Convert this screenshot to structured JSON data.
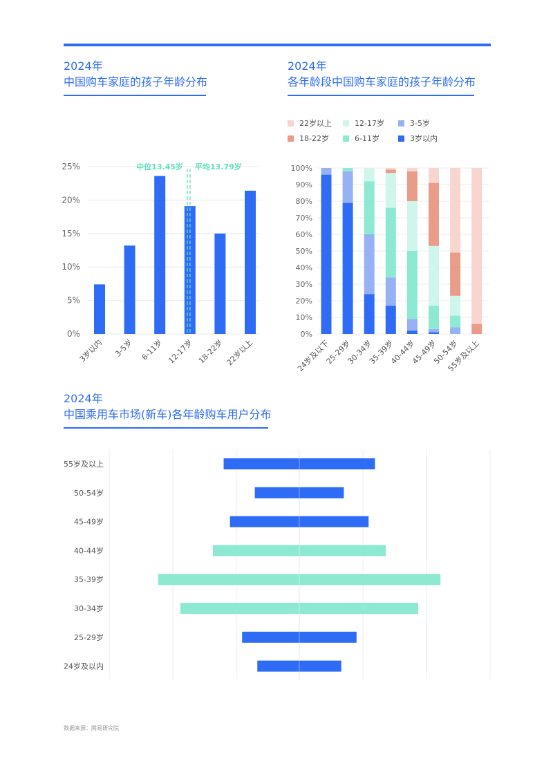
{
  "panel1": {
    "year": "2024年",
    "title": "中国购车家庭的孩子年龄分布"
  },
  "panel2": {
    "year": "2024年",
    "title": "各年龄段中国购车家庭的孩子年龄分布"
  },
  "panel3": {
    "year": "2024年",
    "title": "中国乘用车市场(新车)各年龄购车用户分布"
  },
  "source": "数据来源：腾易研究院",
  "colors": {
    "accent": "#2e6cf6",
    "mint": "#8de9d2",
    "median_line": "#5fe0bd"
  },
  "chart_data": [
    {
      "type": "bar",
      "categories": [
        "3岁以内",
        "3-5岁",
        "6-11岁",
        "12-17岁",
        "18-22岁",
        "22岁以上"
      ],
      "values": [
        7.4,
        13.2,
        23.6,
        19.1,
        15.0,
        21.4
      ],
      "ylim": [
        0,
        25
      ],
      "yticks": [
        "0%",
        "5%",
        "10%",
        "15%",
        "20%",
        "25%"
      ],
      "grid": true,
      "annotations": [
        {
          "label": "中位13.45岁",
          "value": 13.45
        },
        {
          "label": "平均13.79岁",
          "value": 13.79
        }
      ]
    },
    {
      "type": "bar",
      "stacked": true,
      "categories": [
        "24岁及以下",
        "25-29岁",
        "30-34岁",
        "35-39岁",
        "40-44岁",
        "45-49岁",
        "50-54岁",
        "55岁及以上"
      ],
      "ylim": [
        0,
        100
      ],
      "yticks": [
        "0%",
        "10%",
        "20%",
        "30%",
        "40%",
        "50%",
        "60%",
        "70%",
        "80%",
        "90%",
        "100%"
      ],
      "legend_position": "top-left",
      "series": [
        {
          "name": "3岁以内",
          "color": "#2e6cf6",
          "values": [
            96,
            79,
            24,
            17,
            2,
            1,
            0,
            0
          ]
        },
        {
          "name": "3-5岁",
          "color": "#96b2f4",
          "values": [
            4,
            19,
            36,
            17,
            7,
            2,
            4,
            0
          ]
        },
        {
          "name": "6-11岁",
          "color": "#8de9d2",
          "values": [
            0,
            2,
            32,
            42,
            41,
            14,
            7,
            0
          ]
        },
        {
          "name": "12-17岁",
          "color": "#cef6eb",
          "values": [
            0,
            0,
            8,
            21,
            30,
            36,
            12,
            0
          ]
        },
        {
          "name": "18-22岁",
          "color": "#ea9c8a",
          "values": [
            0,
            0,
            0,
            2,
            18,
            38,
            26,
            6
          ]
        },
        {
          "name": "22岁以上",
          "color": "#f8d6cf",
          "values": [
            0,
            0,
            0,
            1,
            2,
            9,
            51,
            94
          ]
        }
      ]
    },
    {
      "type": "bar",
      "orientation": "horizontal",
      "diverging": true,
      "categories": [
        "55岁及以上",
        "50-54岁",
        "45-49岁",
        "40-44岁",
        "35-39岁",
        "30-34岁",
        "25-29岁",
        "24岁及以内"
      ],
      "values": [
        11.9,
        7.0,
        10.9,
        13.6,
        22.2,
        18.7,
        9.0,
        6.6
      ],
      "highlight": [
        false,
        false,
        false,
        true,
        true,
        true,
        false,
        false
      ],
      "grid": true
    }
  ]
}
